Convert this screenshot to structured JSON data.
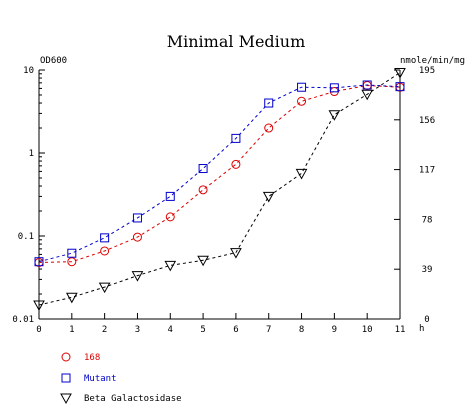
{
  "chart_data": {
    "type": "line",
    "title": "Minimal Medium",
    "x": [
      0,
      1,
      2,
      3,
      4,
      5,
      6,
      7,
      8,
      9,
      10,
      11
    ],
    "xlabel": "h",
    "xlim": [
      0,
      11
    ],
    "xticks": [
      "0",
      "1",
      "2",
      "3",
      "4",
      "5",
      "6",
      "7",
      "8",
      "9",
      "10",
      "11"
    ],
    "y_left": {
      "label": "OD600",
      "scale": "log",
      "lim": [
        0.01,
        10
      ],
      "ticks": [
        {
          "value": 10,
          "label": "10"
        },
        {
          "value": 1,
          "label": "1"
        },
        {
          "value": 0.1,
          "label": "0.1"
        },
        {
          "value": 0.01,
          "label": "0.01"
        }
      ]
    },
    "y_right": {
      "label": "nmole/min/mg",
      "scale": "linear",
      "lim": [
        0,
        195
      ],
      "ticks": [
        {
          "value": 195,
          "label": "195"
        },
        {
          "value": 156,
          "label": "156"
        },
        {
          "value": 117,
          "label": "117"
        },
        {
          "value": 78,
          "label": "78"
        },
        {
          "value": 39,
          "label": "39"
        },
        {
          "value": 0,
          "label": "0"
        }
      ]
    },
    "series": [
      {
        "name": "168",
        "axis": "left",
        "color": "#dd0000",
        "marker": "circle",
        "values": [
          0.048,
          0.049,
          0.066,
          0.097,
          0.17,
          0.36,
          0.73,
          2.0,
          4.2,
          5.5,
          6.5,
          6.2
        ]
      },
      {
        "name": "Mutant",
        "axis": "left",
        "color": "#0000cc",
        "marker": "square",
        "values": [
          0.049,
          0.062,
          0.095,
          0.165,
          0.3,
          0.65,
          1.5,
          4.0,
          6.2,
          6.1,
          6.6,
          6.3
        ]
      },
      {
        "name": "Beta Galactosidase",
        "axis": "right",
        "color": "#000000",
        "marker": "triangle-down",
        "values": [
          11,
          17,
          25,
          34,
          42,
          46,
          52,
          96,
          114,
          160,
          176,
          193
        ]
      }
    ],
    "legend": "bottom-left",
    "grid": false
  }
}
